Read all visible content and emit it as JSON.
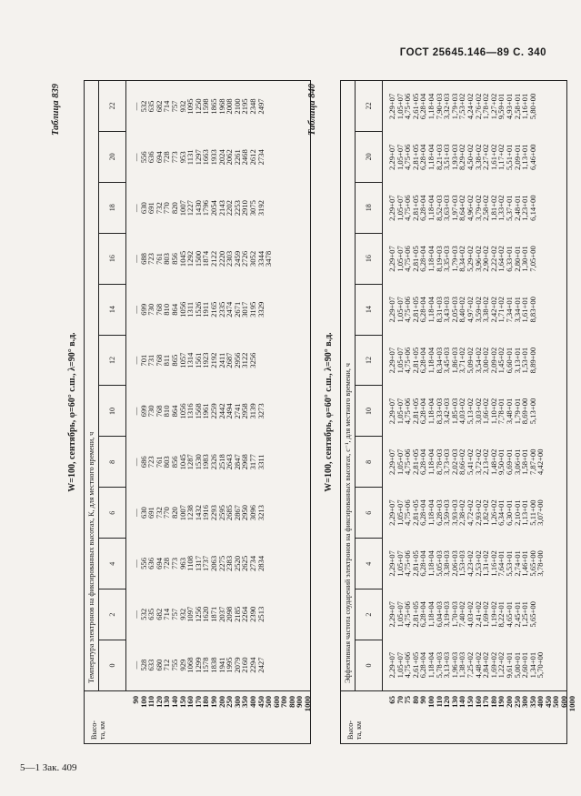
{
  "header": "ГОСТ 25645.146—89 С. 340",
  "footer": "5—1 Зак. 409",
  "table1": {
    "caption": "Таблица 839",
    "regime": "W=100, сентябрь, φ=60° с.ш., λ=90° в.д.",
    "height_label": "Высо-\nта, км",
    "super_header": "Температура электронов на фиксированных высотах, К, для местного времени, ч",
    "columns": [
      "0",
      "2",
      "4",
      "6",
      "8",
      "10",
      "12",
      "14",
      "16",
      "18",
      "20",
      "22"
    ],
    "heights": [
      "90",
      "100",
      "110",
      "120",
      "130",
      "140",
      "150",
      "160",
      "170",
      "180",
      "190",
      "200",
      "250",
      "300",
      "350",
      "400",
      "450",
      "500",
      "600",
      "700",
      "800",
      "900",
      "1000"
    ],
    "values": [
      [
        "—",
        "528",
        "633",
        "680",
        "712",
        "755",
        "929",
        "1068",
        "1299",
        "1578",
        "1838",
        "1941",
        "1995",
        "2079",
        "2160",
        "2294",
        "2427"
      ],
      [
        "—",
        "532",
        "635",
        "682",
        "714",
        "757",
        "932",
        "1097",
        "1256",
        "1620",
        "1871",
        "2037",
        "2098",
        "2185",
        "2264",
        "2390",
        "2513"
      ],
      [
        "—",
        "556",
        "636",
        "694",
        "728",
        "773",
        "963",
        "1108",
        "1317",
        "1737",
        "2063",
        "2275",
        "2383",
        "2520",
        "2625",
        "2734",
        "2834"
      ],
      [
        "—",
        "630",
        "691",
        "732",
        "770",
        "820",
        "1007",
        "1238",
        "1432",
        "1916",
        "2293",
        "2595",
        "2685",
        "2867",
        "2950",
        "3096",
        "3213"
      ],
      [
        "—",
        "686",
        "723",
        "761",
        "803",
        "856",
        "1045",
        "1287",
        "1530",
        "1983",
        "2326",
        "2518",
        "2643",
        "2847",
        "2968",
        "3177",
        "3311"
      ],
      [
        "—",
        "699",
        "730",
        "768",
        "810",
        "864",
        "1056",
        "1316",
        "1568",
        "1961",
        "2259",
        "2442",
        "2494",
        "2741",
        "2958",
        "3139",
        "3273"
      ],
      [
        "—",
        "701",
        "731",
        "768",
        "811",
        "865",
        "1057",
        "1314",
        "1561",
        "1923",
        "2192",
        "2411",
        "2687",
        "2956",
        "3122",
        "3256"
      ],
      [
        "—",
        "699",
        "730",
        "768",
        "810",
        "864",
        "1056",
        "1311",
        "1526",
        "1911",
        "2165",
        "2335",
        "2474",
        "2671",
        "3017",
        "3195",
        "3329"
      ],
      [
        "—",
        "688",
        "723",
        "761",
        "803",
        "856",
        "1045",
        "1292",
        "1500",
        "1874",
        "2122",
        "2220",
        "2303",
        "2459",
        "2726",
        "3052",
        "3344",
        "3478"
      ],
      [
        "—",
        "630",
        "691",
        "732",
        "770",
        "820",
        "1007",
        "1227",
        "1430",
        "1796",
        "2054",
        "2143",
        "2202",
        "2253",
        "2910",
        "3075",
        "3192"
      ],
      [
        "—",
        "556",
        "636",
        "694",
        "728",
        "773",
        "953",
        "1131",
        "1297",
        "1663",
        "1933",
        "2024",
        "2062",
        "2261",
        "2468",
        "2612",
        "2734"
      ],
      [
        "—",
        "532",
        "635",
        "682",
        "714",
        "757",
        "932",
        "1095",
        "1250",
        "1598",
        "1865",
        "1968",
        "2008",
        "2100",
        "2195",
        "2348",
        "2497"
      ]
    ]
  },
  "table2": {
    "caption": "Таблица 840",
    "regime": "W=100, сентябрь, φ=60° с.ш., λ=90° в.д.",
    "height_label": "Высо-\nта, км",
    "super_header": "Эффективная частота соударений электронов на фиксированных высотах, с⁻¹, для местного времени, ч",
    "columns": [
      "0",
      "2",
      "4",
      "6",
      "8",
      "10",
      "12",
      "14",
      "16",
      "18",
      "20",
      "22"
    ],
    "heights": [
      "65",
      "70",
      "75",
      "80",
      "90",
      "100",
      "110",
      "120",
      "130",
      "140",
      "150",
      "160",
      "170",
      "180",
      "190",
      "200",
      "250",
      "300",
      "350",
      "400",
      "450",
      "500",
      "600",
      "1000"
    ],
    "values": [
      [
        "2,29+07",
        "1,05+07",
        "4,75+06",
        "2,61+05",
        "6,28+04",
        "1,18+04",
        "5,78+03",
        "3,13+03",
        "1,96+03",
        "1,38+03",
        "7,25+02",
        "4,48+02",
        "2,84+02",
        "1,69+02",
        "1,22+02",
        "9,61+01",
        "5,00+01",
        "2,60+01",
        "1,34+01",
        "5,70+00"
      ],
      [
        "2,29+07",
        "1,05+07",
        "4,75+06",
        "2,81+05",
        "6,28+04",
        "1,18+04",
        "6,04+03",
        "3,19+03",
        "1,70+03",
        "7,40+02",
        "4,03+02",
        "2,41+02",
        "1,69+02",
        "1,19+02",
        "8,22+01",
        "4,65+01",
        "2,45+01",
        "1,25+01",
        "5,65+00"
      ],
      [
        "2,29+07",
        "1,05+07",
        "4,75+06",
        "2,81+05",
        "6,28+04",
        "1,18+04",
        "5,05+03",
        "3,38+03",
        "2,06+03",
        "1,53+03",
        "4,23+02",
        "2,53+02",
        "1,31+02",
        "1,16+02",
        "7,64+01",
        "5,53+01",
        "2,74+01",
        "1,46+01",
        "5,65+00",
        "3,78+00"
      ],
      [
        "2,29+07",
        "1,05+07",
        "4,75+06",
        "2,81+05",
        "6,28+04",
        "1,18+04",
        "6,28+03",
        "3,59+03",
        "3,93+03",
        "2,38+02",
        "4,72+02",
        "2,93+02",
        "1,82+02",
        "1,26+02",
        "6,34+01",
        "6,30+01",
        "2,10+01",
        "1,13+01",
        "5,11+00",
        "3,07+00"
      ],
      [
        "2,29+07",
        "1,05+07",
        "4,75+06",
        "2,81+05",
        "6,28+04",
        "1,18+04",
        "8,78+03",
        "3,73+03",
        "2,02+03",
        "8,66+02",
        "5,41+02",
        "3,72+02",
        "2,13+02",
        "1,48+02",
        "9,50+01",
        "6,69+01",
        "3,06+01",
        "1,58+01",
        "7,87+00",
        "4,42+00"
      ],
      [
        "2,29+07",
        "1,05+07",
        "4,75+06",
        "2,81+05",
        "6,28+04",
        "1,18+04",
        "8,33+03",
        "3,42+03",
        "1,85+03",
        "4,03+02",
        "5,13+02",
        "3,03+02",
        "1,66+02",
        "1,10+02",
        "7,78+01",
        "3,48+01",
        "1,79+01",
        "8,69+00",
        "5,13+00"
      ],
      [
        "2,29+07",
        "1,05+07",
        "4,75+06",
        "2,81+05",
        "6,28+04",
        "1,18+04",
        "8,34+03",
        "3,45+03",
        "1,86+03",
        "3,71+02",
        "5,09+02",
        "3,54+02",
        "3,00+02",
        "2,09+02",
        "1,45+02",
        "6,60+01",
        "3,13+01",
        "1,53+01",
        "8,89+00"
      ],
      [
        "2,29+07",
        "1,05+07",
        "4,75+06",
        "2,81+05",
        "6,28+04",
        "1,18+04",
        "8,31+03",
        "3,43+03",
        "2,05+03",
        "8,40+02",
        "4,97+02",
        "3,59+02",
        "3,38+02",
        "2,42+02",
        "1,71+02",
        "7,34+01",
        "3,34+01",
        "1,61+01",
        "8,83+00"
      ],
      [
        "2,29+07",
        "1,05+07",
        "4,75+06",
        "2,81+05",
        "6,28+04",
        "1,18+04",
        "8,19+03",
        "3,35+03",
        "1,79+03",
        "8,34+02",
        "5,29+02",
        "3,96+02",
        "2,90+02",
        "2,22+02",
        "1,64+02",
        "6,33+01",
        "2,80+01",
        "1,30+01",
        "7,05+00"
      ],
      [
        "2,29+07",
        "1,05+07",
        "4,75+06",
        "2,81+05",
        "6,28+04",
        "1,18+04",
        "8,52+03",
        "3,63+03",
        "1,97+03",
        "8,64+02",
        "4,96+02",
        "3,79+02",
        "2,58+02",
        "1,81+02",
        "1,33+02",
        "5,37+01",
        "2,48+01",
        "1,23+01",
        "6,14+00"
      ],
      [
        "2,29+07",
        "1,05+07",
        "4,75+06",
        "2,81+05",
        "6,28+04",
        "1,18+04",
        "8,21+03",
        "3,51+03",
        "1,93+03",
        "8,29+02",
        "4,50+02",
        "3,38+02",
        "2,27+02",
        "1,61+02",
        "1,17+02",
        "5,51+01",
        "2,09+01",
        "1,13+01",
        "6,46+00"
      ],
      [
        "2,29+07",
        "1,05+07",
        "4,75+06",
        "2,61+05",
        "6,28+04",
        "1,18+04",
        "7,90+03",
        "3,32+03",
        "1,79+03",
        "7,53+02",
        "4,24+02",
        "2,76+02",
        "1,78+02",
        "1,27+02",
        "9,59+01",
        "4,93+01",
        "2,58+01",
        "1,16+01",
        "5,80+00"
      ]
    ]
  }
}
